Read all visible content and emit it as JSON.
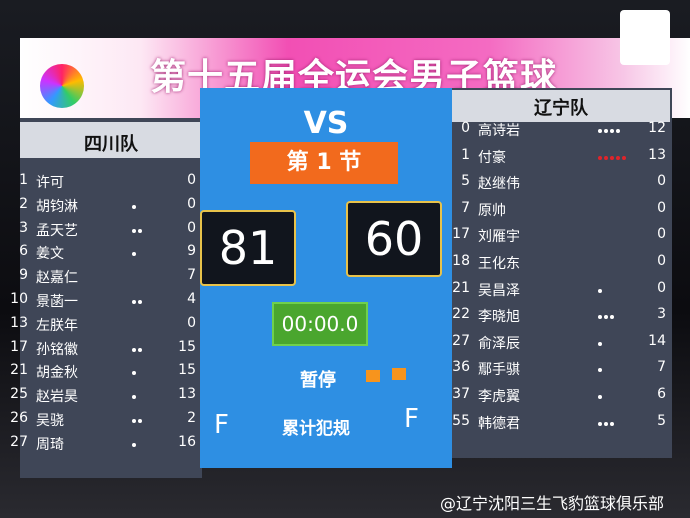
{
  "header": {
    "title": "第十五届全运会男子篮球"
  },
  "home": {
    "name": "四川队",
    "players": [
      {
        "number": 1,
        "name": "许可",
        "fouls": 0,
        "points": 0
      },
      {
        "number": 2,
        "name": "胡钧淋",
        "fouls": 1,
        "points": 0
      },
      {
        "number": 3,
        "name": "孟天艺",
        "fouls": 2,
        "points": 0
      },
      {
        "number": 6,
        "name": "姜文",
        "fouls": 1,
        "points": 9
      },
      {
        "number": 9,
        "name": "赵嘉仁",
        "fouls": 0,
        "points": 7
      },
      {
        "number": 10,
        "name": "景菡一",
        "fouls": 2,
        "points": 4
      },
      {
        "number": 13,
        "name": "左朕年",
        "fouls": 0,
        "points": 0
      },
      {
        "number": 17,
        "name": "孙铭徽",
        "fouls": 2,
        "points": 15
      },
      {
        "number": 21,
        "name": "胡金秋",
        "fouls": 1,
        "points": 15
      },
      {
        "number": 25,
        "name": "赵岩昊",
        "fouls": 1,
        "points": 13
      },
      {
        "number": 26,
        "name": "吴骁",
        "fouls": 2,
        "points": 2
      },
      {
        "number": 27,
        "name": "周琦",
        "fouls": 1,
        "points": 16
      }
    ]
  },
  "away": {
    "name": "辽宁队",
    "players": [
      {
        "number": 0,
        "name": "高诗岩",
        "fouls": 4,
        "points": 12
      },
      {
        "number": 1,
        "name": "付豪",
        "fouls": 5,
        "points": 13
      },
      {
        "number": 5,
        "name": "赵继伟",
        "fouls": 0,
        "points": 0
      },
      {
        "number": 7,
        "name": "原帅",
        "fouls": 0,
        "points": 0
      },
      {
        "number": 17,
        "name": "刘雁宇",
        "fouls": 0,
        "points": 0
      },
      {
        "number": 18,
        "name": "王化东",
        "fouls": 0,
        "points": 0
      },
      {
        "number": 21,
        "name": "吴昌泽",
        "fouls": 1,
        "points": 0
      },
      {
        "number": 22,
        "name": "李晓旭",
        "fouls": 3,
        "points": 3
      },
      {
        "number": 27,
        "name": "俞泽辰",
        "fouls": 1,
        "points": 14
      },
      {
        "number": 36,
        "name": "鄢手骐",
        "fouls": 1,
        "points": 7
      },
      {
        "number": 37,
        "name": "李虎翼",
        "fouls": 1,
        "points": 6
      },
      {
        "number": 55,
        "name": "韩德君",
        "fouls": 3,
        "points": 5
      }
    ]
  },
  "center": {
    "vs": "VS",
    "period": "第 1 节",
    "home_score": 81,
    "away_score": 60,
    "clock": "00:00.0",
    "timeout_label": "暂停",
    "team_fouls_label": "累计犯规",
    "home_team_fouls": "F",
    "away_team_fouls": "F"
  },
  "watermark": "@辽宁沈阳三生飞豹篮球俱乐部"
}
